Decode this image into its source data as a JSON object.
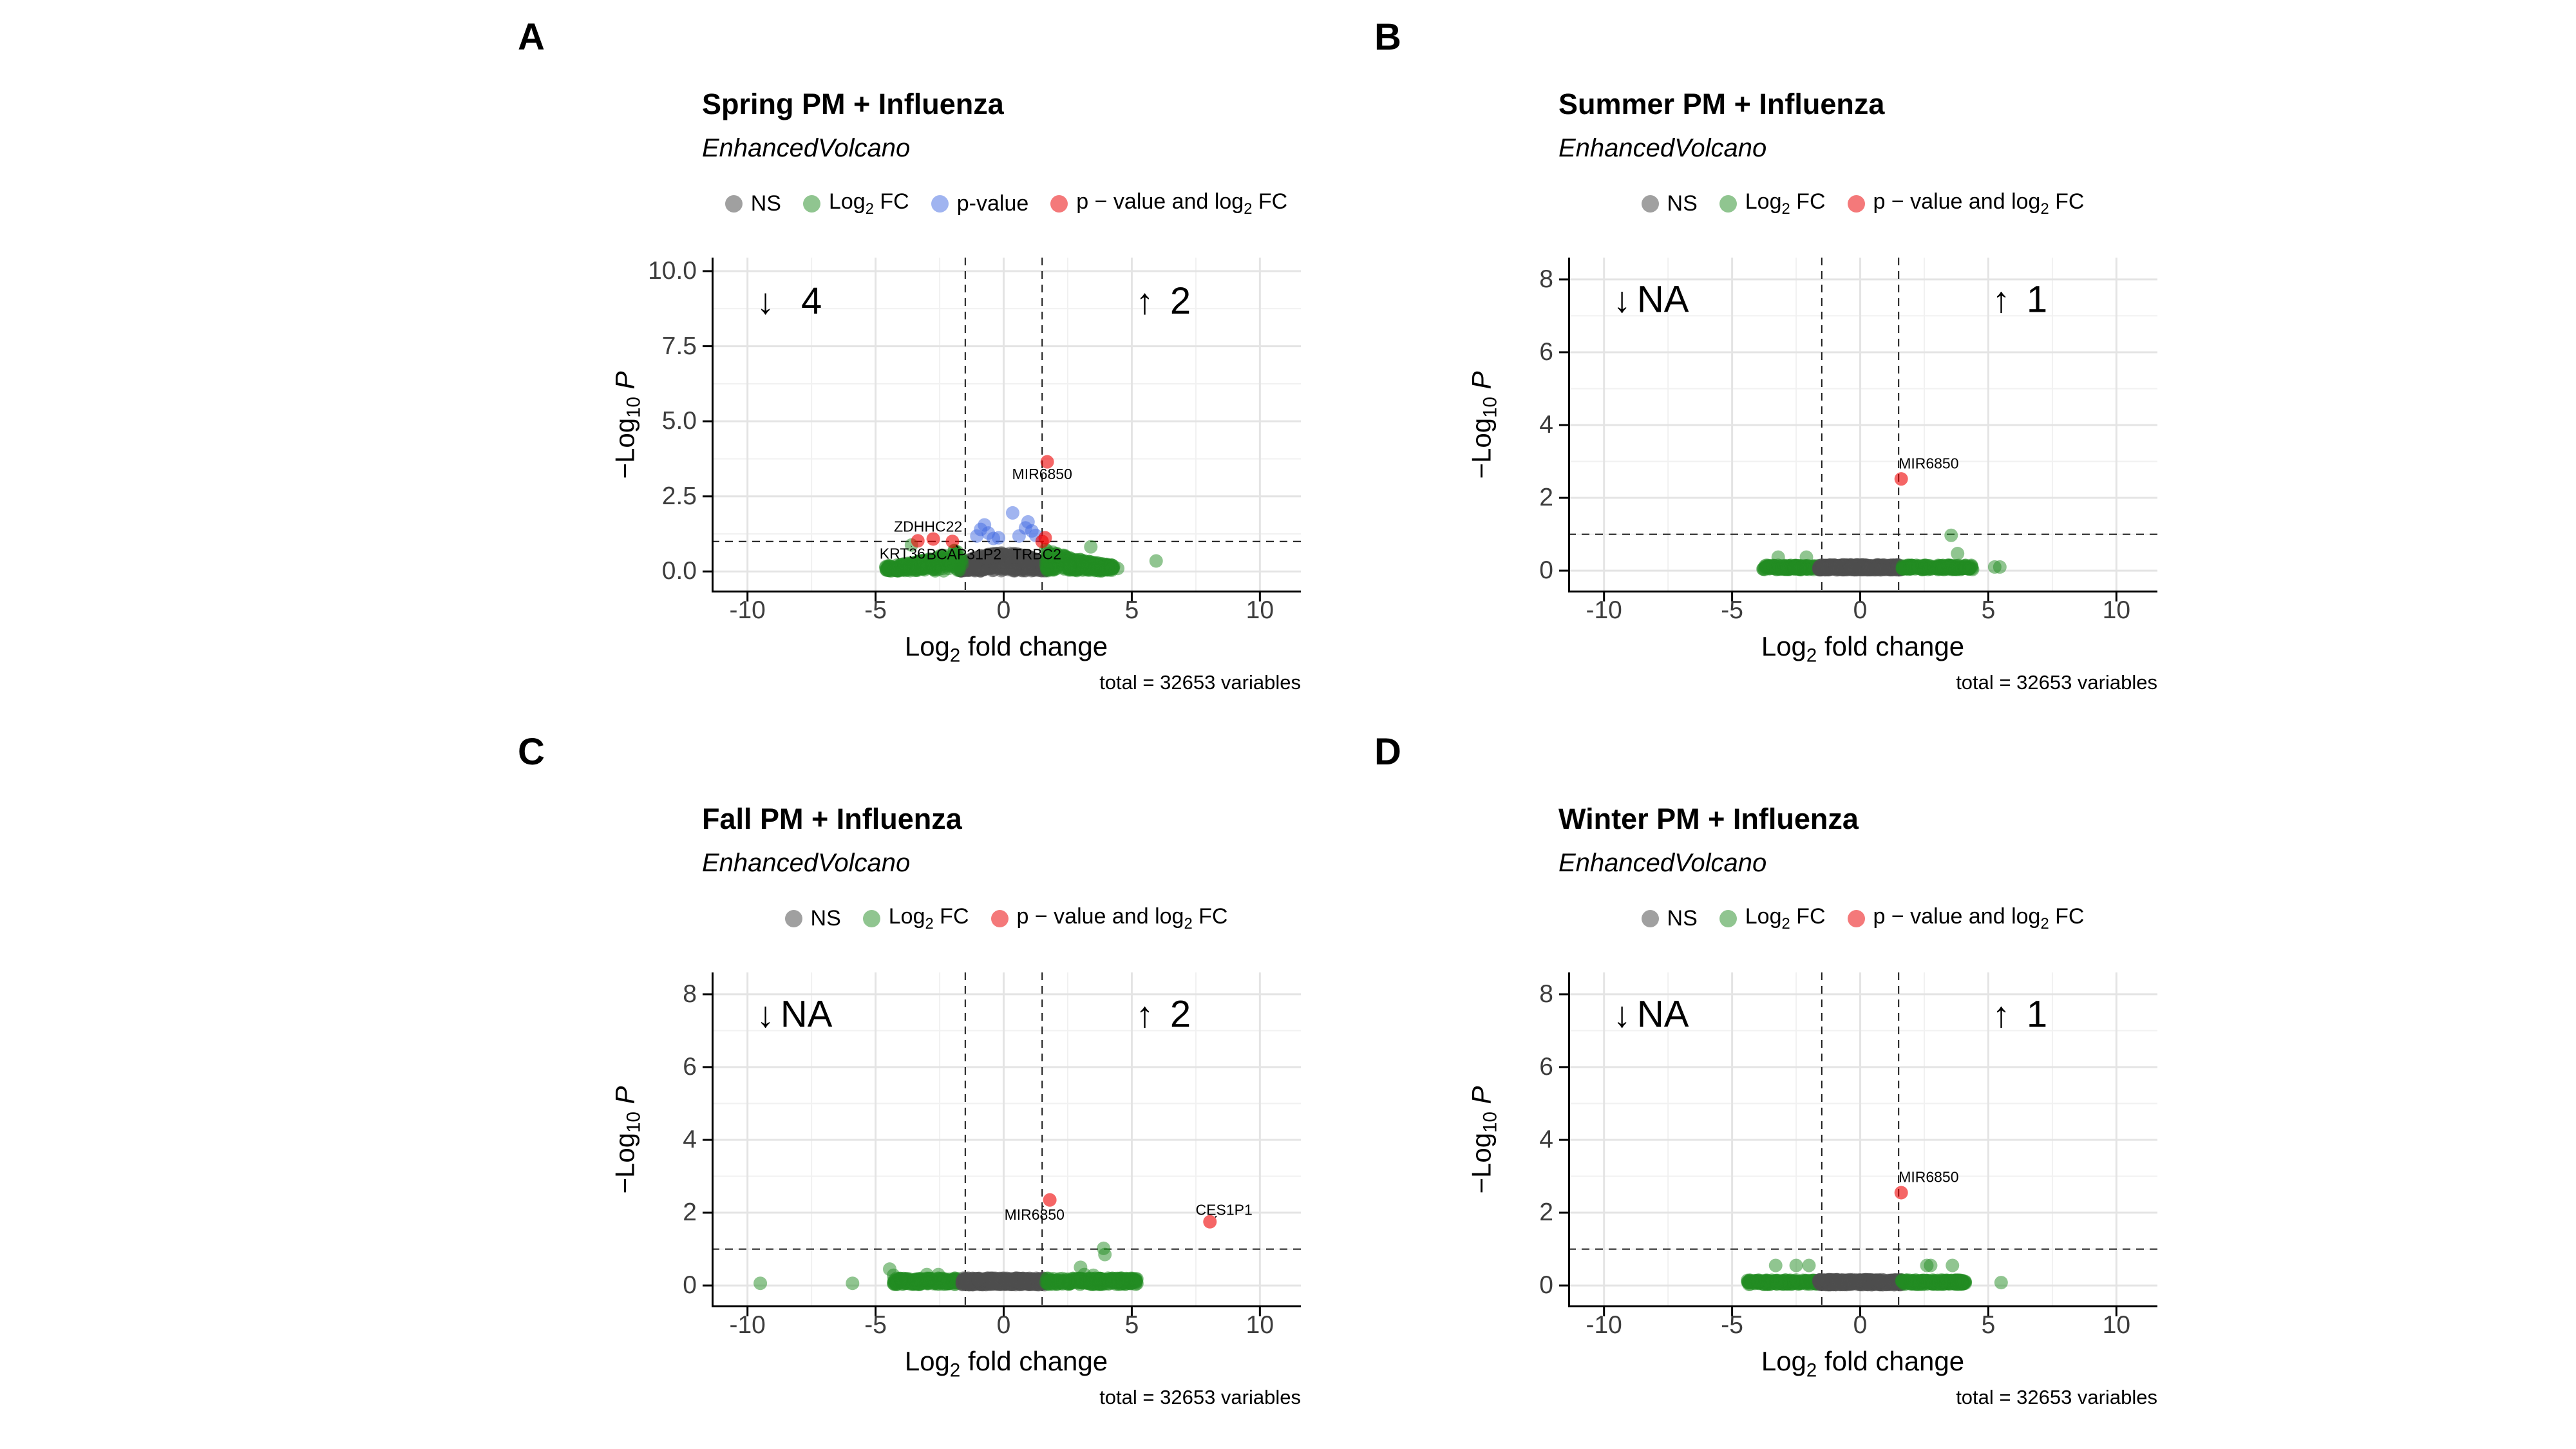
{
  "figure": {
    "background": "#ffffff",
    "down_arrow": "↓",
    "up_arrow": "↑",
    "grid_major_color": "#e4e4e4",
    "grid_minor_color": "#f1f1f1",
    "axis_color": "#000000",
    "point_colors": {
      "gray": "rgba(77,77,77,0.5)",
      "green": "rgba(34,139,34,0.5)",
      "blue": "rgba(65,105,225,0.5)",
      "red": "rgba(238,0,0,0.6)"
    }
  },
  "panels": [
    {
      "letter": "A",
      "title": "Spring PM + Influenza",
      "subtitle": "EnhancedVolcano",
      "x_label_html": "Log<sub>2</sub> fold change",
      "y_label_html": "&#8722;Log<sub>10</sub> <i>P</i>",
      "caption": "total = 32653 variables",
      "legend": [
        {
          "label_html": "NS",
          "color": "#a0a0a0"
        },
        {
          "label_html": "Log<sub>2</sub> FC",
          "color": "#90c590"
        },
        {
          "label_html": "p-value",
          "color": "#a0b4f0"
        },
        {
          "label_html": "p &#8722; value and log<sub>2</sub> FC",
          "color": "#f4797a"
        }
      ]
    },
    {
      "letter": "B",
      "title": "Summer PM + Influenza",
      "subtitle": "EnhancedVolcano",
      "x_label_html": "Log<sub>2</sub> fold change",
      "y_label_html": "&#8722;Log<sub>10</sub> <i>P</i>",
      "caption": "total = 32653 variables",
      "legend": [
        {
          "label_html": "NS",
          "color": "#a0a0a0"
        },
        {
          "label_html": "Log<sub>2</sub> FC",
          "color": "#90c590"
        },
        {
          "label_html": "p &#8722; value and log<sub>2</sub> FC",
          "color": "#f4797a"
        }
      ]
    },
    {
      "letter": "C",
      "title": "Fall PM + Influenza",
      "subtitle": "EnhancedVolcano",
      "x_label_html": "Log<sub>2</sub> fold change",
      "y_label_html": "&#8722;Log<sub>10</sub> <i>P</i>",
      "caption": "total = 32653 variables",
      "legend": [
        {
          "label_html": "NS",
          "color": "#a0a0a0"
        },
        {
          "label_html": "Log<sub>2</sub> FC",
          "color": "#90c590"
        },
        {
          "label_html": "p &#8722; value and log<sub>2</sub> FC",
          "color": "#f4797a"
        }
      ]
    },
    {
      "letter": "D",
      "title": "Winter PM + Influenza",
      "subtitle": "EnhancedVolcano",
      "x_label_html": "Log<sub>2</sub> fold change",
      "y_label_html": "&#8722;Log<sub>10</sub> <i>P</i>",
      "caption": "total = 32653 variables",
      "legend": [
        {
          "label_html": "NS",
          "color": "#a0a0a0"
        },
        {
          "label_html": "Log<sub>2</sub> FC",
          "color": "#90c590"
        },
        {
          "label_html": "p &#8722; value and log<sub>2</sub> FC",
          "color": "#f4797a"
        }
      ]
    }
  ],
  "chart_data": [
    {
      "type": "scatter",
      "panel": "A",
      "title": "Spring PM + Influenza",
      "xlabel": "Log2 fold change",
      "ylabel": "-Log10 P",
      "xlim": [
        -11.4,
        11.6
      ],
      "ylim": [
        -0.7,
        10.45
      ],
      "x_ticks": [
        -10,
        -5,
        0,
        5,
        10
      ],
      "x_minor": [
        -7.5,
        -2.5,
        2.5,
        7.5
      ],
      "y_ticks": [
        {
          "v": 0,
          "label": "0.0"
        },
        {
          "v": 2.5,
          "label": "2.5"
        },
        {
          "v": 5,
          "label": "5.0"
        },
        {
          "v": 7.5,
          "label": "7.5"
        },
        {
          "v": 10,
          "label": "10.0"
        }
      ],
      "y_minor": [
        1.25,
        3.75,
        6.25,
        8.75
      ],
      "vlines": [
        -1.5,
        1.5
      ],
      "hline": 1,
      "annotations": {
        "down": {
          "x": -9.3,
          "text_x": -7.5,
          "y": 9.0,
          "value": "4"
        },
        "up": {
          "x": 5.5,
          "text_x": 6.9,
          "y": 9.0,
          "value": "2"
        }
      },
      "clusters": [
        {
          "type": "lens",
          "color": "gray",
          "cx": 0,
          "rx": 1.68,
          "h": 0.6,
          "n": 550,
          "seed": 11
        },
        {
          "type": "taper",
          "color": "green",
          "x0": -4.6,
          "x1": -1.62,
          "h": 0.8,
          "n": 250,
          "seed": 12
        },
        {
          "type": "taper",
          "color": "green",
          "x0": 1.62,
          "x1": 4.3,
          "h": 0.78,
          "n": 250,
          "seed": 13
        }
      ],
      "points": {
        "green": [
          [
            5.95,
            0.35
          ],
          [
            -3.6,
            0.88
          ],
          [
            3.4,
            0.82
          ],
          [
            -4.5,
            0.12
          ],
          [
            4.45,
            0.1
          ]
        ],
        "blue": [
          [
            -1.05,
            1.18
          ],
          [
            -0.9,
            1.4
          ],
          [
            -0.75,
            1.55
          ],
          [
            -0.6,
            1.28
          ],
          [
            -0.4,
            1.1
          ],
          [
            -0.2,
            1.12
          ],
          [
            0.35,
            1.95
          ],
          [
            0.6,
            1.18
          ],
          [
            0.85,
            1.45
          ],
          [
            0.95,
            1.65
          ],
          [
            1.1,
            1.35
          ],
          [
            1.25,
            1.2
          ]
        ],
        "red": [
          [
            1.62,
            1.12
          ]
        ]
      },
      "labeled": [
        {
          "name": "MIR6850",
          "x": 1.7,
          "y": 3.65,
          "lx": 1.5,
          "ly": 3.25,
          "anchor": "middle"
        },
        {
          "name": "ZDHHC22",
          "x": -2.75,
          "y": 1.08,
          "lx": -2.95,
          "ly": 1.5,
          "anchor": "middle"
        },
        {
          "name": "KRT36",
          "x": -3.35,
          "y": 1.02,
          "lx": -3.95,
          "ly": 0.6,
          "anchor": "middle"
        },
        {
          "name": "BCAP31P2",
          "x": -2.0,
          "y": 1.0,
          "lx": -1.55,
          "ly": 0.58,
          "anchor": "middle"
        },
        {
          "name": "TRBC2",
          "x": 1.5,
          "y": 1.0,
          "lx": 1.3,
          "ly": 0.58,
          "anchor": "middle"
        }
      ]
    },
    {
      "type": "scatter",
      "panel": "B",
      "title": "Summer PM + Influenza",
      "xlabel": "Log2 fold change",
      "ylabel": "-Log10 P",
      "xlim": [
        -11.4,
        11.6
      ],
      "ylim": [
        -0.6,
        8.6
      ],
      "x_ticks": [
        -10,
        -5,
        0,
        5,
        10
      ],
      "x_minor": [
        -7.5,
        -2.5,
        2.5,
        7.5
      ],
      "y_ticks": [
        {
          "v": 0,
          "label": "0"
        },
        {
          "v": 2,
          "label": "2"
        },
        {
          "v": 4,
          "label": "4"
        },
        {
          "v": 6,
          "label": "6"
        },
        {
          "v": 8,
          "label": "8"
        }
      ],
      "y_minor": [
        1,
        3,
        5,
        7
      ],
      "vlines": [
        -1.5,
        1.5
      ],
      "hline": 1,
      "annotations": {
        "down": {
          "x": -9.3,
          "text_x": -7.7,
          "y": 7.45,
          "value": "NA"
        },
        "up": {
          "x": 5.5,
          "text_x": 6.9,
          "y": 7.45,
          "value": "1"
        }
      },
      "clusters": [
        {
          "type": "band",
          "color": "green",
          "x0": -3.8,
          "x1": -1.62,
          "y0": 0.03,
          "y1": 0.15,
          "n": 150,
          "seed": 21
        },
        {
          "type": "band",
          "color": "gray",
          "x0": -1.62,
          "x1": 1.62,
          "y0": 0.02,
          "y1": 0.16,
          "n": 450,
          "seed": 22
        },
        {
          "type": "band",
          "color": "green",
          "x0": 1.62,
          "x1": 4.4,
          "y0": 0.03,
          "y1": 0.15,
          "n": 190,
          "seed": 23
        }
      ],
      "points": {
        "green": [
          [
            -3.2,
            0.37
          ],
          [
            -2.1,
            0.37
          ],
          [
            3.55,
            0.97
          ],
          [
            3.8,
            0.47
          ],
          [
            4.1,
            0.1
          ],
          [
            4.35,
            0.1
          ],
          [
            5.25,
            0.1
          ],
          [
            5.45,
            0.1
          ]
        ],
        "blue": [],
        "red": []
      },
      "labeled": [
        {
          "name": "MIR6850",
          "x": 1.6,
          "y": 2.52,
          "lx": 1.5,
          "ly": 2.95,
          "anchor": "start"
        }
      ]
    },
    {
      "type": "scatter",
      "panel": "C",
      "title": "Fall PM + Influenza",
      "xlabel": "Log2 fold change",
      "ylabel": "-Log10 P",
      "xlim": [
        -11.4,
        11.6
      ],
      "ylim": [
        -0.6,
        8.6
      ],
      "x_ticks": [
        -10,
        -5,
        0,
        5,
        10
      ],
      "x_minor": [
        -7.5,
        -2.5,
        2.5,
        7.5
      ],
      "y_ticks": [
        {
          "v": 0,
          "label": "0"
        },
        {
          "v": 2,
          "label": "2"
        },
        {
          "v": 4,
          "label": "4"
        },
        {
          "v": 6,
          "label": "6"
        },
        {
          "v": 8,
          "label": "8"
        }
      ],
      "y_minor": [
        1,
        3,
        5,
        7
      ],
      "vlines": [
        -1.5,
        1.5
      ],
      "hline": 1,
      "annotations": {
        "down": {
          "x": -9.3,
          "text_x": -7.7,
          "y": 7.45,
          "value": "NA"
        },
        "up": {
          "x": 5.5,
          "text_x": 6.9,
          "y": 7.45,
          "value": "2"
        }
      },
      "clusters": [
        {
          "type": "band",
          "color": "green",
          "x0": -4.3,
          "x1": -1.62,
          "y0": 0.03,
          "y1": 0.2,
          "n": 210,
          "seed": 31
        },
        {
          "type": "band",
          "color": "gray",
          "x0": -1.62,
          "x1": 1.62,
          "y0": 0.02,
          "y1": 0.2,
          "n": 520,
          "seed": 32
        },
        {
          "type": "band",
          "color": "green",
          "x0": 1.62,
          "x1": 5.2,
          "y0": 0.03,
          "y1": 0.2,
          "n": 280,
          "seed": 33
        }
      ],
      "points": {
        "green": [
          [
            -9.5,
            0.06
          ],
          [
            -5.9,
            0.06
          ],
          [
            -4.45,
            0.45
          ],
          [
            -4.3,
            0.28
          ],
          [
            -3.0,
            0.3
          ],
          [
            -2.55,
            0.3
          ],
          [
            3.0,
            0.5
          ],
          [
            3.15,
            0.3
          ],
          [
            3.5,
            0.28
          ],
          [
            3.9,
            1.02
          ],
          [
            3.95,
            0.85
          ],
          [
            4.45,
            0.12
          ],
          [
            4.65,
            0.12
          ],
          [
            5.15,
            0.12
          ]
        ],
        "blue": [],
        "red": []
      },
      "labeled": [
        {
          "name": "MIR6850",
          "x": 1.8,
          "y": 2.35,
          "lx": 1.2,
          "ly": 1.95,
          "anchor": "middle"
        },
        {
          "name": "CES1P1",
          "x": 8.05,
          "y": 1.75,
          "lx": 8.6,
          "ly": 2.08,
          "anchor": "middle"
        }
      ]
    },
    {
      "type": "scatter",
      "panel": "D",
      "title": "Winter PM + Influenza",
      "xlabel": "Log2 fold change",
      "ylabel": "-Log10 P",
      "xlim": [
        -11.4,
        11.6
      ],
      "ylim": [
        -0.6,
        8.6
      ],
      "x_ticks": [
        -10,
        -5,
        0,
        5,
        10
      ],
      "x_minor": [
        -7.5,
        -2.5,
        2.5,
        7.5
      ],
      "y_ticks": [
        {
          "v": 0,
          "label": "0"
        },
        {
          "v": 2,
          "label": "2"
        },
        {
          "v": 4,
          "label": "4"
        },
        {
          "v": 6,
          "label": "6"
        },
        {
          "v": 8,
          "label": "8"
        }
      ],
      "y_minor": [
        1,
        3,
        5,
        7
      ],
      "vlines": [
        -1.5,
        1.5
      ],
      "hline": 1,
      "annotations": {
        "down": {
          "x": -9.3,
          "text_x": -7.7,
          "y": 7.45,
          "value": "NA"
        },
        "up": {
          "x": 5.5,
          "text_x": 6.9,
          "y": 7.45,
          "value": "1"
        }
      },
      "clusters": [
        {
          "type": "band",
          "color": "green",
          "x0": -4.4,
          "x1": -1.62,
          "y0": 0.03,
          "y1": 0.15,
          "n": 190,
          "seed": 41
        },
        {
          "type": "band",
          "color": "gray",
          "x0": -1.62,
          "x1": 1.62,
          "y0": 0.02,
          "y1": 0.16,
          "n": 450,
          "seed": 42
        },
        {
          "type": "band",
          "color": "green",
          "x0": 1.62,
          "x1": 4.1,
          "y0": 0.03,
          "y1": 0.15,
          "n": 190,
          "seed": 43
        }
      ],
      "points": {
        "green": [
          [
            -3.3,
            0.55
          ],
          [
            -2.5,
            0.55
          ],
          [
            -2.0,
            0.55
          ],
          [
            2.6,
            0.55
          ],
          [
            2.75,
            0.55
          ],
          [
            3.6,
            0.55
          ],
          [
            5.5,
            0.08
          ]
        ],
        "blue": [],
        "red": []
      },
      "labeled": [
        {
          "name": "MIR6850",
          "x": 1.6,
          "y": 2.55,
          "lx": 1.5,
          "ly": 2.98,
          "anchor": "start"
        }
      ]
    }
  ]
}
